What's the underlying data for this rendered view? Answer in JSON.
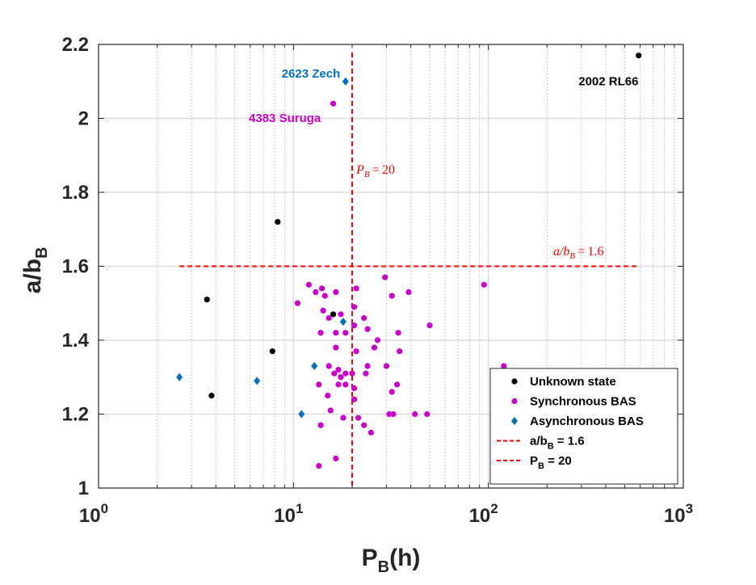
{
  "chart_data": {
    "type": "scatter",
    "xscale": "log",
    "xlim": [
      1,
      1000
    ],
    "ylim": [
      1,
      2.2
    ],
    "xlabel": {
      "main": "P",
      "sub": "B",
      "tail": "(h)"
    },
    "ylabel": {
      "main": "a/b",
      "sub": "B"
    },
    "grid": true,
    "x_tick_labels": [
      {
        "value": 1,
        "base": "10",
        "exp": "0"
      },
      {
        "value": 10,
        "base": "10",
        "exp": "1"
      },
      {
        "value": 100,
        "base": "10",
        "exp": "2"
      },
      {
        "value": 1000,
        "base": "10",
        "exp": "3"
      }
    ],
    "y_ticks": [
      1,
      1.2,
      1.4,
      1.6,
      1.8,
      2,
      2.2
    ],
    "y_tick_labels": [
      "1",
      "1.2",
      "1.4",
      "1.6",
      "1.8",
      "2",
      "2.2"
    ],
    "series": [
      {
        "name": "Unknown state",
        "color": "#000000",
        "marker": "circle",
        "points": [
          [
            3.6,
            1.51
          ],
          [
            3.8,
            1.25
          ],
          [
            7.8,
            1.37
          ],
          [
            8.3,
            1.72
          ],
          [
            16,
            1.47
          ],
          [
            590,
            2.17
          ]
        ]
      },
      {
        "name": "Synchronous BAS",
        "color": "#CC00CC",
        "marker": "circle",
        "points": [
          [
            10.5,
            1.5
          ],
          [
            12,
            1.55
          ],
          [
            13,
            1.53
          ],
          [
            14,
            1.54
          ],
          [
            14.5,
            1.52
          ],
          [
            16.5,
            1.53
          ],
          [
            14.2,
            1.48
          ],
          [
            15.2,
            1.46
          ],
          [
            17.5,
            1.47
          ],
          [
            13.8,
            1.42
          ],
          [
            16.5,
            1.42
          ],
          [
            18.5,
            1.42
          ],
          [
            16.5,
            1.38
          ],
          [
            15.2,
            1.33
          ],
          [
            16.2,
            1.31
          ],
          [
            17,
            1.32
          ],
          [
            17.5,
            1.3
          ],
          [
            18.5,
            1.31
          ],
          [
            17,
            1.28
          ],
          [
            18.5,
            1.28
          ],
          [
            13.5,
            1.28
          ],
          [
            15,
            1.25
          ],
          [
            15.5,
            1.21
          ],
          [
            18,
            1.19
          ],
          [
            13.8,
            1.17
          ],
          [
            16.5,
            1.08
          ],
          [
            13.5,
            1.06
          ],
          [
            16,
            2.04
          ],
          [
            21,
            1.54
          ],
          [
            20.5,
            1.49
          ],
          [
            20.5,
            1.44
          ],
          [
            21,
            1.37
          ],
          [
            20,
            1.31
          ],
          [
            20.5,
            1.27
          ],
          [
            20.5,
            1.24
          ],
          [
            21.5,
            1.19
          ],
          [
            23,
            1.46
          ],
          [
            24,
            1.43
          ],
          [
            26,
            1.38
          ],
          [
            27,
            1.4
          ],
          [
            24,
            1.33
          ],
          [
            23.5,
            1.31
          ],
          [
            23,
            1.17
          ],
          [
            25,
            1.15
          ],
          [
            29.5,
            1.57
          ],
          [
            32,
            1.52
          ],
          [
            34.5,
            1.42
          ],
          [
            35,
            1.37
          ],
          [
            30,
            1.33
          ],
          [
            32,
            1.26
          ],
          [
            34,
            1.28
          ],
          [
            31,
            1.2
          ],
          [
            32.5,
            1.2
          ],
          [
            39,
            1.53
          ],
          [
            42,
            1.2
          ],
          [
            50,
            1.44
          ],
          [
            48.5,
            1.2
          ],
          [
            95,
            1.55
          ],
          [
            120,
            1.33
          ]
        ]
      },
      {
        "name": "Asynchronous BAS",
        "color": "#0072BD",
        "marker": "diamond",
        "points": [
          [
            2.6,
            1.3
          ],
          [
            6.5,
            1.29
          ],
          [
            11,
            1.2
          ],
          [
            12.8,
            1.33
          ],
          [
            18,
            1.45
          ],
          [
            18.5,
            2.1
          ]
        ]
      }
    ],
    "reference_lines": [
      {
        "name": "a/b",
        "name_sub": "B",
        "name_tail": " = 1.6",
        "orientation": "horizontal",
        "value": 1.6,
        "x_range": [
          2.6,
          590
        ],
        "color": "#FF0000"
      },
      {
        "name": "P",
        "name_sub": "B",
        "name_tail": " = 20",
        "orientation": "vertical",
        "value": 20,
        "y_range": [
          1,
          2.2
        ],
        "color": "#FF0000"
      }
    ],
    "annotations": [
      {
        "text": "2623 Zech",
        "x": 8.7,
        "y": 2.11,
        "color": "#0072BD",
        "style": "bold"
      },
      {
        "text": "4383 Suruga",
        "x": 5.9,
        "y": 1.99,
        "color": "#CC00CC",
        "style": "bold"
      },
      {
        "text": "2002 RL66",
        "x": 290,
        "y": 2.09,
        "color": "#000000",
        "style": "bold"
      },
      {
        "text": "P_B = 20",
        "x": 21,
        "y": 1.85,
        "color": "#FF0000",
        "style": "math"
      },
      {
        "text": "a/b_B = 1.6",
        "x": 215,
        "y": 1.63,
        "color": "#FF0000",
        "style": "math"
      }
    ],
    "legend": {
      "placement": "bottom-right"
    }
  }
}
